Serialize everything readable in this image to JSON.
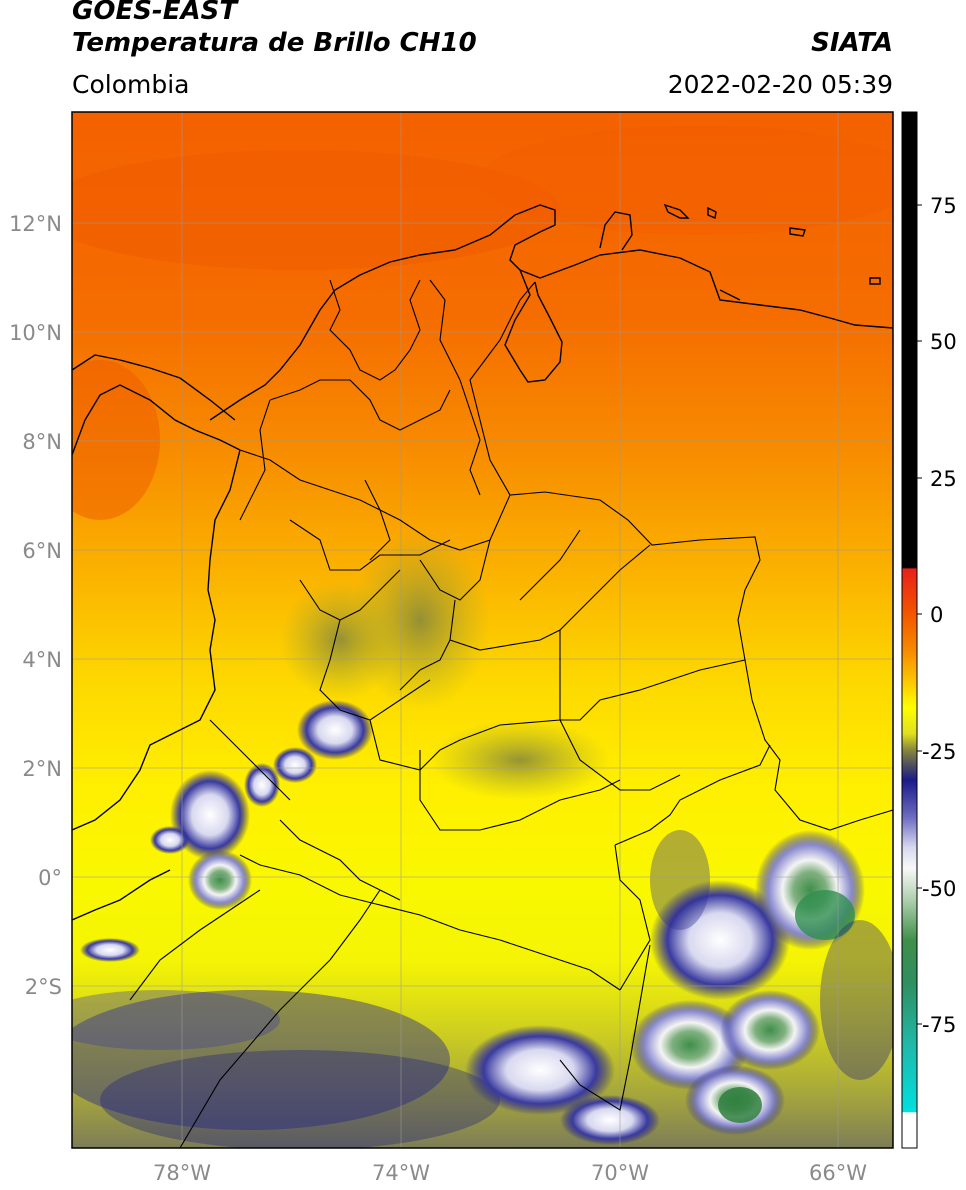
{
  "header": {
    "title_line1": "GOES-EAST",
    "title_line2": "Temperatura de Brillo CH10",
    "region": "Colombia",
    "source": "SIATA",
    "datetime": "2022-02-20 05:39"
  },
  "map": {
    "lat_labels": [
      "12°N",
      "10°N",
      "8°N",
      "6°N",
      "4°N",
      "2°N",
      "0°",
      "2°S"
    ],
    "lon_labels": [
      "78°W",
      "74°W",
      "70°W",
      "66°W"
    ]
  },
  "colorbar": {
    "tick_labels": [
      "75",
      "50",
      "25",
      "0",
      "-25",
      "-50",
      "-75"
    ],
    "colors": {
      "black": "#000000",
      "red": "#e4201a",
      "orange": "#f47a00",
      "yellow": "#ffff00",
      "olive": "#8a8a2a",
      "navy": "#1a1a8a",
      "white": "#ffffff",
      "green": "#2f8f3f",
      "cyan": "#00d4d4"
    }
  }
}
